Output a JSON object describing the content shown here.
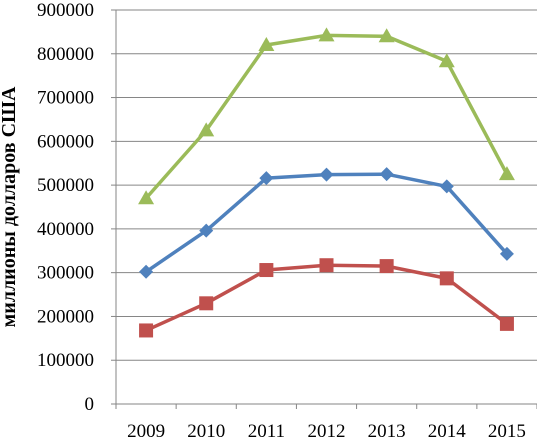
{
  "chart_data": {
    "type": "line",
    "title": "",
    "xlabel": "",
    "ylabel": "миллионы долларов США",
    "categories": [
      "2009",
      "2010",
      "2011",
      "2012",
      "2013",
      "2014",
      "2015"
    ],
    "ylim": [
      0,
      900000
    ],
    "yticks": [
      0,
      100000,
      200000,
      300000,
      400000,
      500000,
      600000,
      700000,
      800000,
      900000
    ],
    "ytick_labels": [
      "0",
      "100000",
      "200000",
      "300000",
      "400000",
      "500000",
      "600000",
      "700000",
      "800000",
      "900000"
    ],
    "grid": true,
    "legend": "none",
    "series": [
      {
        "values": [
          470000,
          625000,
          820000,
          842000,
          840000,
          783000,
          525000
        ],
        "color": "#9BBB59",
        "marker": "triangle"
      },
      {
        "values": [
          302000,
          396000,
          516000,
          524000,
          525000,
          497000,
          343000
        ],
        "color": "#4F81BD",
        "marker": "diamond"
      },
      {
        "values": [
          168000,
          230000,
          306000,
          317000,
          315000,
          287000,
          183000
        ],
        "color": "#C0504D",
        "marker": "square"
      }
    ]
  }
}
